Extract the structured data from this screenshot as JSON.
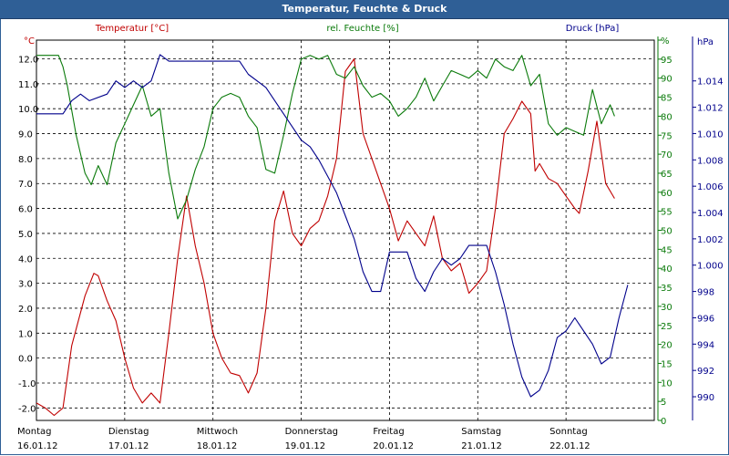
{
  "window": {
    "title": "Temperatur, Feuchte & Druck"
  },
  "colors": {
    "temperature": "#c00000",
    "humidity": "#0a7a0a",
    "pressure": "#00008b",
    "grid": "#000000",
    "title_bar": "#2f5f96"
  },
  "chart_data": {
    "type": "line",
    "title": "Temperatur, Feuchte & Druck",
    "x_range": [
      0,
      7
    ],
    "days": [
      {
        "day": "Montag",
        "date": "16.01.12"
      },
      {
        "day": "Dienstag",
        "date": "17.01.12"
      },
      {
        "day": "Mittwoch",
        "date": "18.01.12"
      },
      {
        "day": "Donnerstag",
        "date": "19.01.12"
      },
      {
        "day": "Freitag",
        "date": "20.01.12"
      },
      {
        "day": "Samstag",
        "date": "21.01.12"
      },
      {
        "day": "Sonntag",
        "date": "22.01.12"
      }
    ],
    "axes": {
      "temperature": {
        "unit": "°C",
        "label": "Temperatur [°C]",
        "range": [
          -2.5,
          12.75
        ],
        "ticks": [
          "12.0",
          "11.0",
          "10.0",
          "9.0",
          "8.0",
          "7.0",
          "6.0",
          "5.0",
          "4.0",
          "3.0",
          "2.0",
          "1.0",
          "0.0",
          "-1.0",
          "-2.0"
        ]
      },
      "humidity": {
        "unit": "%",
        "label": "rel. Feuchte [%]",
        "range": [
          0,
          100
        ],
        "ticks": [
          "0",
          "5",
          "10",
          "15",
          "20",
          "25",
          "30",
          "35",
          "40",
          "45",
          "50",
          "55",
          "60",
          "65",
          "70",
          "75",
          "80",
          "85",
          "90",
          "95",
          "%"
        ]
      },
      "pressure": {
        "unit": "hPa",
        "label": "Druck [hPa]",
        "range": [
          988.2,
          1017.1
        ],
        "ticks": [
          "990",
          "992",
          "994",
          "996",
          "998",
          "1.000",
          "1.002",
          "1.004",
          "1.006",
          "1.008",
          "1.010",
          "1.012",
          "1.014",
          "hPa"
        ]
      }
    },
    "series": [
      {
        "name": "Temperatur [°C]",
        "axis": "temperature",
        "points": [
          [
            0,
            -1.8
          ],
          [
            0.1,
            -2.0
          ],
          [
            0.2,
            -2.3
          ],
          [
            0.3,
            -2.0
          ],
          [
            0.4,
            0.5
          ],
          [
            0.55,
            2.5
          ],
          [
            0.65,
            3.4
          ],
          [
            0.7,
            3.3
          ],
          [
            0.8,
            2.3
          ],
          [
            0.9,
            1.5
          ],
          [
            1.0,
            0.0
          ],
          [
            1.1,
            -1.2
          ],
          [
            1.2,
            -1.8
          ],
          [
            1.3,
            -1.4
          ],
          [
            1.4,
            -1.8
          ],
          [
            1.5,
            1.0
          ],
          [
            1.6,
            4.0
          ],
          [
            1.7,
            6.5
          ],
          [
            1.8,
            4.5
          ],
          [
            1.9,
            3.0
          ],
          [
            2.0,
            1.0
          ],
          [
            2.1,
            0.0
          ],
          [
            2.2,
            -0.6
          ],
          [
            2.3,
            -0.7
          ],
          [
            2.4,
            -1.4
          ],
          [
            2.5,
            -0.6
          ],
          [
            2.6,
            2.0
          ],
          [
            2.7,
            5.5
          ],
          [
            2.8,
            6.7
          ],
          [
            2.9,
            5.0
          ],
          [
            3.0,
            4.5
          ],
          [
            3.1,
            5.2
          ],
          [
            3.2,
            5.5
          ],
          [
            3.3,
            6.5
          ],
          [
            3.4,
            8.0
          ],
          [
            3.5,
            11.5
          ],
          [
            3.6,
            12.0
          ],
          [
            3.7,
            9.0
          ],
          [
            3.8,
            8.0
          ],
          [
            3.9,
            7.0
          ],
          [
            4.0,
            6.0
          ],
          [
            4.1,
            4.7
          ],
          [
            4.2,
            5.5
          ],
          [
            4.3,
            5.0
          ],
          [
            4.4,
            4.5
          ],
          [
            4.5,
            5.7
          ],
          [
            4.6,
            4.0
          ],
          [
            4.7,
            3.5
          ],
          [
            4.8,
            3.8
          ],
          [
            4.9,
            2.6
          ],
          [
            5.0,
            3.0
          ],
          [
            5.1,
            3.5
          ],
          [
            5.2,
            6.0
          ],
          [
            5.3,
            9.0
          ],
          [
            5.4,
            9.6
          ],
          [
            5.5,
            10.3
          ],
          [
            5.6,
            9.8
          ],
          [
            5.65,
            7.5
          ],
          [
            5.7,
            7.8
          ],
          [
            5.8,
            7.2
          ],
          [
            5.9,
            7.0
          ],
          [
            6.0,
            6.5
          ],
          [
            6.1,
            6.0
          ],
          [
            6.15,
            5.8
          ],
          [
            6.25,
            7.5
          ],
          [
            6.35,
            9.5
          ],
          [
            6.45,
            7.0
          ],
          [
            6.55,
            6.4
          ]
        ]
      },
      {
        "name": "rel. Feuchte [%]",
        "axis": "humidity",
        "points": [
          [
            0,
            96
          ],
          [
            0.25,
            96
          ],
          [
            0.3,
            93
          ],
          [
            0.35,
            88
          ],
          [
            0.45,
            75
          ],
          [
            0.55,
            65
          ],
          [
            0.62,
            62
          ],
          [
            0.7,
            67
          ],
          [
            0.8,
            62
          ],
          [
            0.9,
            73
          ],
          [
            1.0,
            78
          ],
          [
            1.1,
            83
          ],
          [
            1.2,
            88
          ],
          [
            1.3,
            80
          ],
          [
            1.4,
            82
          ],
          [
            1.5,
            65
          ],
          [
            1.6,
            53
          ],
          [
            1.7,
            58
          ],
          [
            1.8,
            66
          ],
          [
            1.9,
            72
          ],
          [
            2.0,
            82
          ],
          [
            2.1,
            85
          ],
          [
            2.2,
            86
          ],
          [
            2.3,
            85
          ],
          [
            2.4,
            80
          ],
          [
            2.5,
            77
          ],
          [
            2.6,
            66
          ],
          [
            2.7,
            65
          ],
          [
            2.8,
            75
          ],
          [
            2.9,
            86
          ],
          [
            3.0,
            95
          ],
          [
            3.1,
            96
          ],
          [
            3.2,
            95
          ],
          [
            3.3,
            96
          ],
          [
            3.4,
            91
          ],
          [
            3.5,
            90
          ],
          [
            3.6,
            93
          ],
          [
            3.7,
            88
          ],
          [
            3.8,
            85
          ],
          [
            3.9,
            86
          ],
          [
            4.0,
            84
          ],
          [
            4.1,
            80
          ],
          [
            4.2,
            82
          ],
          [
            4.3,
            85
          ],
          [
            4.4,
            90
          ],
          [
            4.5,
            84
          ],
          [
            4.6,
            88
          ],
          [
            4.7,
            92
          ],
          [
            4.8,
            91
          ],
          [
            4.9,
            90
          ],
          [
            5.0,
            92
          ],
          [
            5.1,
            90
          ],
          [
            5.2,
            95
          ],
          [
            5.3,
            93
          ],
          [
            5.4,
            92
          ],
          [
            5.5,
            96
          ],
          [
            5.6,
            88
          ],
          [
            5.7,
            91
          ],
          [
            5.8,
            78
          ],
          [
            5.9,
            75
          ],
          [
            6.0,
            77
          ],
          [
            6.1,
            76
          ],
          [
            6.2,
            75
          ],
          [
            6.3,
            87
          ],
          [
            6.4,
            78
          ],
          [
            6.5,
            83
          ],
          [
            6.55,
            80
          ]
        ]
      },
      {
        "name": "Druck [hPa]",
        "axis": "pressure",
        "points": [
          [
            0,
            1011.5
          ],
          [
            0.3,
            1011.5
          ],
          [
            0.4,
            1012.5
          ],
          [
            0.5,
            1013.0
          ],
          [
            0.6,
            1012.5
          ],
          [
            0.8,
            1013.0
          ],
          [
            0.9,
            1014.0
          ],
          [
            1.0,
            1013.5
          ],
          [
            1.1,
            1014.0
          ],
          [
            1.2,
            1013.5
          ],
          [
            1.3,
            1014.0
          ],
          [
            1.4,
            1016.0
          ],
          [
            1.5,
            1015.5
          ],
          [
            1.6,
            1015.5
          ],
          [
            2.0,
            1015.5
          ],
          [
            2.3,
            1015.5
          ],
          [
            2.4,
            1014.5
          ],
          [
            2.6,
            1013.5
          ],
          [
            2.8,
            1011.5
          ],
          [
            3.0,
            1009.5
          ],
          [
            3.1,
            1009.0
          ],
          [
            3.2,
            1008.0
          ],
          [
            3.4,
            1005.5
          ],
          [
            3.6,
            1002.0
          ],
          [
            3.7,
            999.5
          ],
          [
            3.8,
            998.0
          ],
          [
            3.9,
            998.0
          ],
          [
            4.0,
            1001.0
          ],
          [
            4.1,
            1001.0
          ],
          [
            4.2,
            1001.0
          ],
          [
            4.3,
            999.0
          ],
          [
            4.4,
            998.0
          ],
          [
            4.5,
            999.5
          ],
          [
            4.6,
            1000.5
          ],
          [
            4.7,
            1000.0
          ],
          [
            4.8,
            1000.5
          ],
          [
            4.9,
            1001.5
          ],
          [
            5.0,
            1001.5
          ],
          [
            5.1,
            1001.5
          ],
          [
            5.2,
            999.5
          ],
          [
            5.3,
            997.0
          ],
          [
            5.4,
            994.0
          ],
          [
            5.5,
            991.5
          ],
          [
            5.6,
            990.0
          ],
          [
            5.7,
            990.5
          ],
          [
            5.8,
            992.0
          ],
          [
            5.9,
            994.5
          ],
          [
            6.0,
            995.0
          ],
          [
            6.1,
            996.0
          ],
          [
            6.2,
            995.0
          ],
          [
            6.3,
            994.0
          ],
          [
            6.4,
            992.5
          ],
          [
            6.5,
            993.0
          ],
          [
            6.6,
            996.0
          ],
          [
            6.7,
            998.5
          ]
        ]
      }
    ]
  }
}
